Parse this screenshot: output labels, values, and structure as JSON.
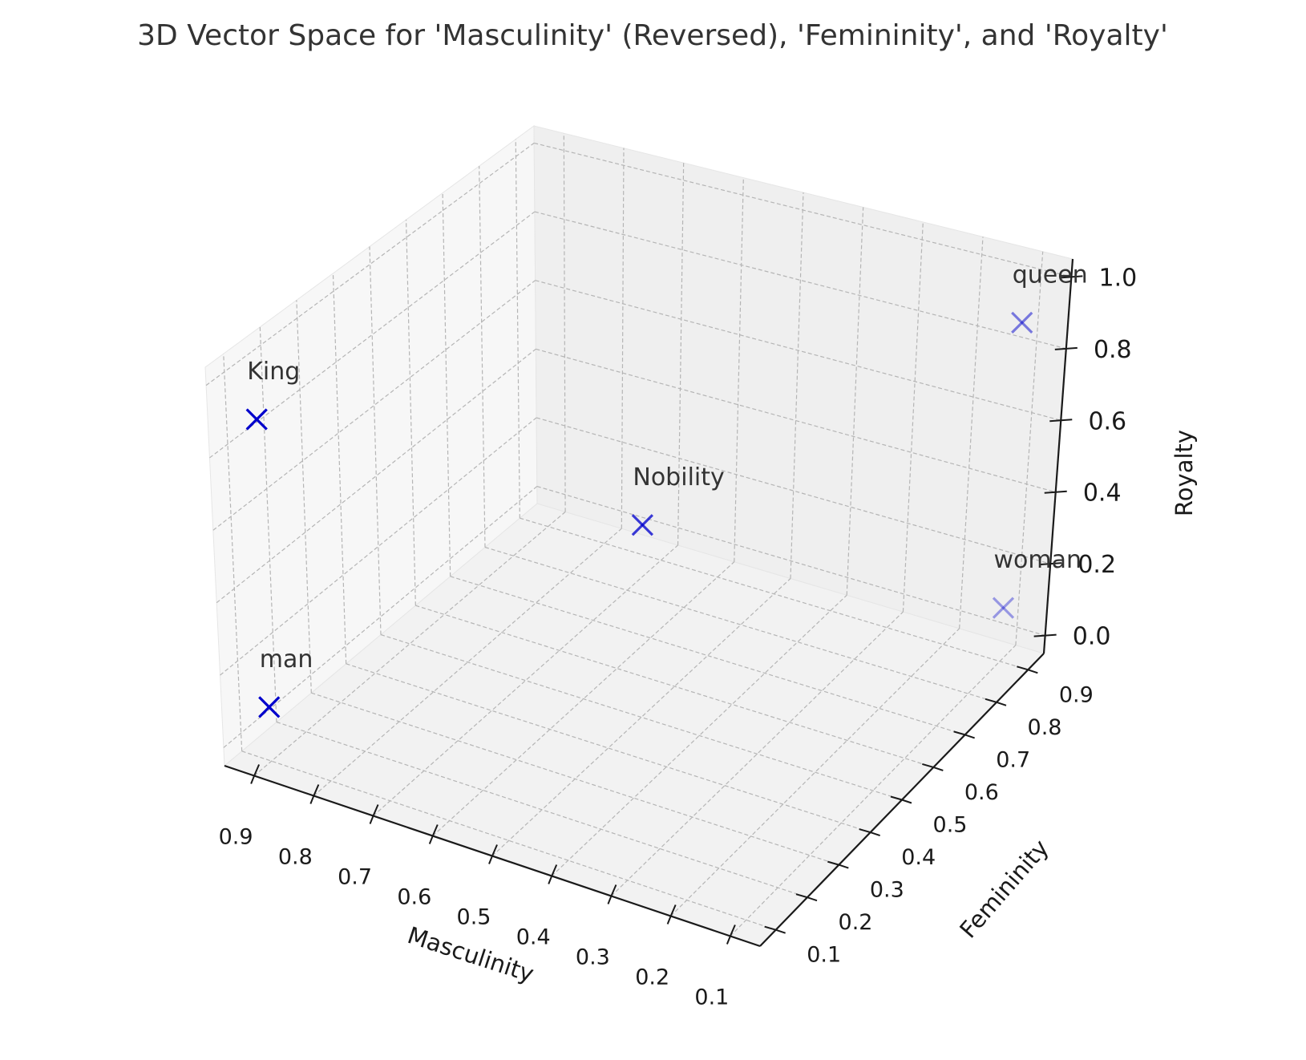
{
  "chart_data": {
    "type": "scatter",
    "projection": "3d",
    "title": "3D Vector Space for 'Masculinity' (Reversed), 'Femininity', and 'Royalty'",
    "xlabel": "Masculinity",
    "ylabel": "Femininity",
    "zlabel": "Royalty",
    "x_reversed": true,
    "xlim": [
      0.95,
      0.05
    ],
    "ylim": [
      0.05,
      0.95
    ],
    "zlim": [
      -0.05,
      1.05
    ],
    "xticks": [
      "0.9",
      "0.8",
      "0.7",
      "0.6",
      "0.5",
      "0.4",
      "0.3",
      "0.2",
      "0.1"
    ],
    "yticks": [
      "0.1",
      "0.2",
      "0.3",
      "0.4",
      "0.5",
      "0.6",
      "0.7",
      "0.8",
      "0.9"
    ],
    "zticks": [
      "0.0",
      "0.2",
      "0.4",
      "0.6",
      "0.8",
      "1.0"
    ],
    "grid": true,
    "marker": "x",
    "marker_color": "#0000cc",
    "points": [
      {
        "label": "King",
        "masculinity": 0.9,
        "femininity": 0.1,
        "royalty": 0.9
      },
      {
        "label": "man",
        "masculinity": 0.9,
        "femininity": 0.1,
        "royalty": 0.1
      },
      {
        "label": "Nobility",
        "masculinity": 0.5,
        "femininity": 0.5,
        "royalty": 0.5
      },
      {
        "label": "queen",
        "masculinity": 0.1,
        "femininity": 0.9,
        "royalty": 0.9
      },
      {
        "label": "woman",
        "masculinity": 0.1,
        "femininity": 0.9,
        "royalty": 0.1
      }
    ]
  }
}
